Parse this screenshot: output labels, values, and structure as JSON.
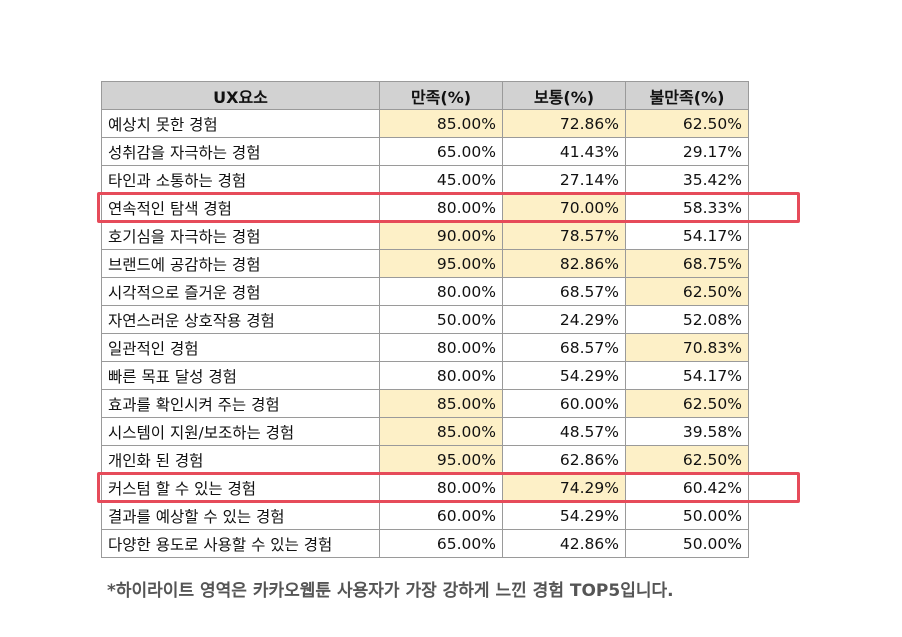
{
  "table": {
    "headers": [
      "UX요소",
      "만족(%)",
      "보통(%)",
      "불만족(%)"
    ],
    "rows": [
      {
        "label": "예상치 못한 경험",
        "values": [
          "85.00%",
          "72.86%",
          "62.50%"
        ],
        "highlight": [
          true,
          true,
          true
        ]
      },
      {
        "label": "성취감을 자극하는 경험",
        "values": [
          "65.00%",
          "41.43%",
          "29.17%"
        ],
        "highlight": [
          false,
          false,
          false
        ]
      },
      {
        "label": "타인과 소통하는 경험",
        "values": [
          "45.00%",
          "27.14%",
          "35.42%"
        ],
        "highlight": [
          false,
          false,
          false
        ]
      },
      {
        "label": "연속적인 탐색 경험",
        "values": [
          "80.00%",
          "70.00%",
          "58.33%"
        ],
        "highlight": [
          false,
          true,
          false
        ]
      },
      {
        "label": "호기심을 자극하는 경험",
        "values": [
          "90.00%",
          "78.57%",
          "54.17%"
        ],
        "highlight": [
          true,
          true,
          false
        ]
      },
      {
        "label": "브랜드에 공감하는 경험",
        "values": [
          "95.00%",
          "82.86%",
          "68.75%"
        ],
        "highlight": [
          true,
          true,
          true
        ]
      },
      {
        "label": "시각적으로 즐거운 경험",
        "values": [
          "80.00%",
          "68.57%",
          "62.50%"
        ],
        "highlight": [
          false,
          false,
          true
        ]
      },
      {
        "label": "자연스러운 상호작용 경험",
        "values": [
          "50.00%",
          "24.29%",
          "52.08%"
        ],
        "highlight": [
          false,
          false,
          false
        ]
      },
      {
        "label": "일관적인 경험",
        "values": [
          "80.00%",
          "68.57%",
          "70.83%"
        ],
        "highlight": [
          false,
          false,
          true
        ]
      },
      {
        "label": "빠른 목표 달성 경험",
        "values": [
          "80.00%",
          "54.29%",
          "54.17%"
        ],
        "highlight": [
          false,
          false,
          false
        ]
      },
      {
        "label": "효과를 확인시켜 주는 경험",
        "values": [
          "85.00%",
          "60.00%",
          "62.50%"
        ],
        "highlight": [
          true,
          false,
          true
        ]
      },
      {
        "label": "시스템이 지원/보조하는 경험",
        "values": [
          "85.00%",
          "48.57%",
          "39.58%"
        ],
        "highlight": [
          true,
          false,
          false
        ]
      },
      {
        "label": "개인화 된 경험",
        "values": [
          "95.00%",
          "62.86%",
          "62.50%"
        ],
        "highlight": [
          true,
          false,
          true
        ]
      },
      {
        "label": "커스텀 할 수 있는 경험",
        "values": [
          "80.00%",
          "74.29%",
          "60.42%"
        ],
        "highlight": [
          false,
          true,
          false
        ]
      },
      {
        "label": "결과를 예상할 수 있는 경험",
        "values": [
          "60.00%",
          "54.29%",
          "50.00%"
        ],
        "highlight": [
          false,
          false,
          false
        ]
      },
      {
        "label": "다양한 용도로 사용할 수 있는 경험",
        "values": [
          "65.00%",
          "42.86%",
          "50.00%"
        ],
        "highlight": [
          false,
          false,
          false
        ]
      }
    ],
    "boxed_rows": [
      3,
      13
    ]
  },
  "colors": {
    "highlight_fill": "#fdf0c7",
    "header_fill": "#d2d2d2",
    "box_border": "#e64b5a"
  },
  "footnote": "*하이라이트 영역은 카카오웹툰 사용자가 가장 강하게 느낀 경험 TOP5입니다."
}
